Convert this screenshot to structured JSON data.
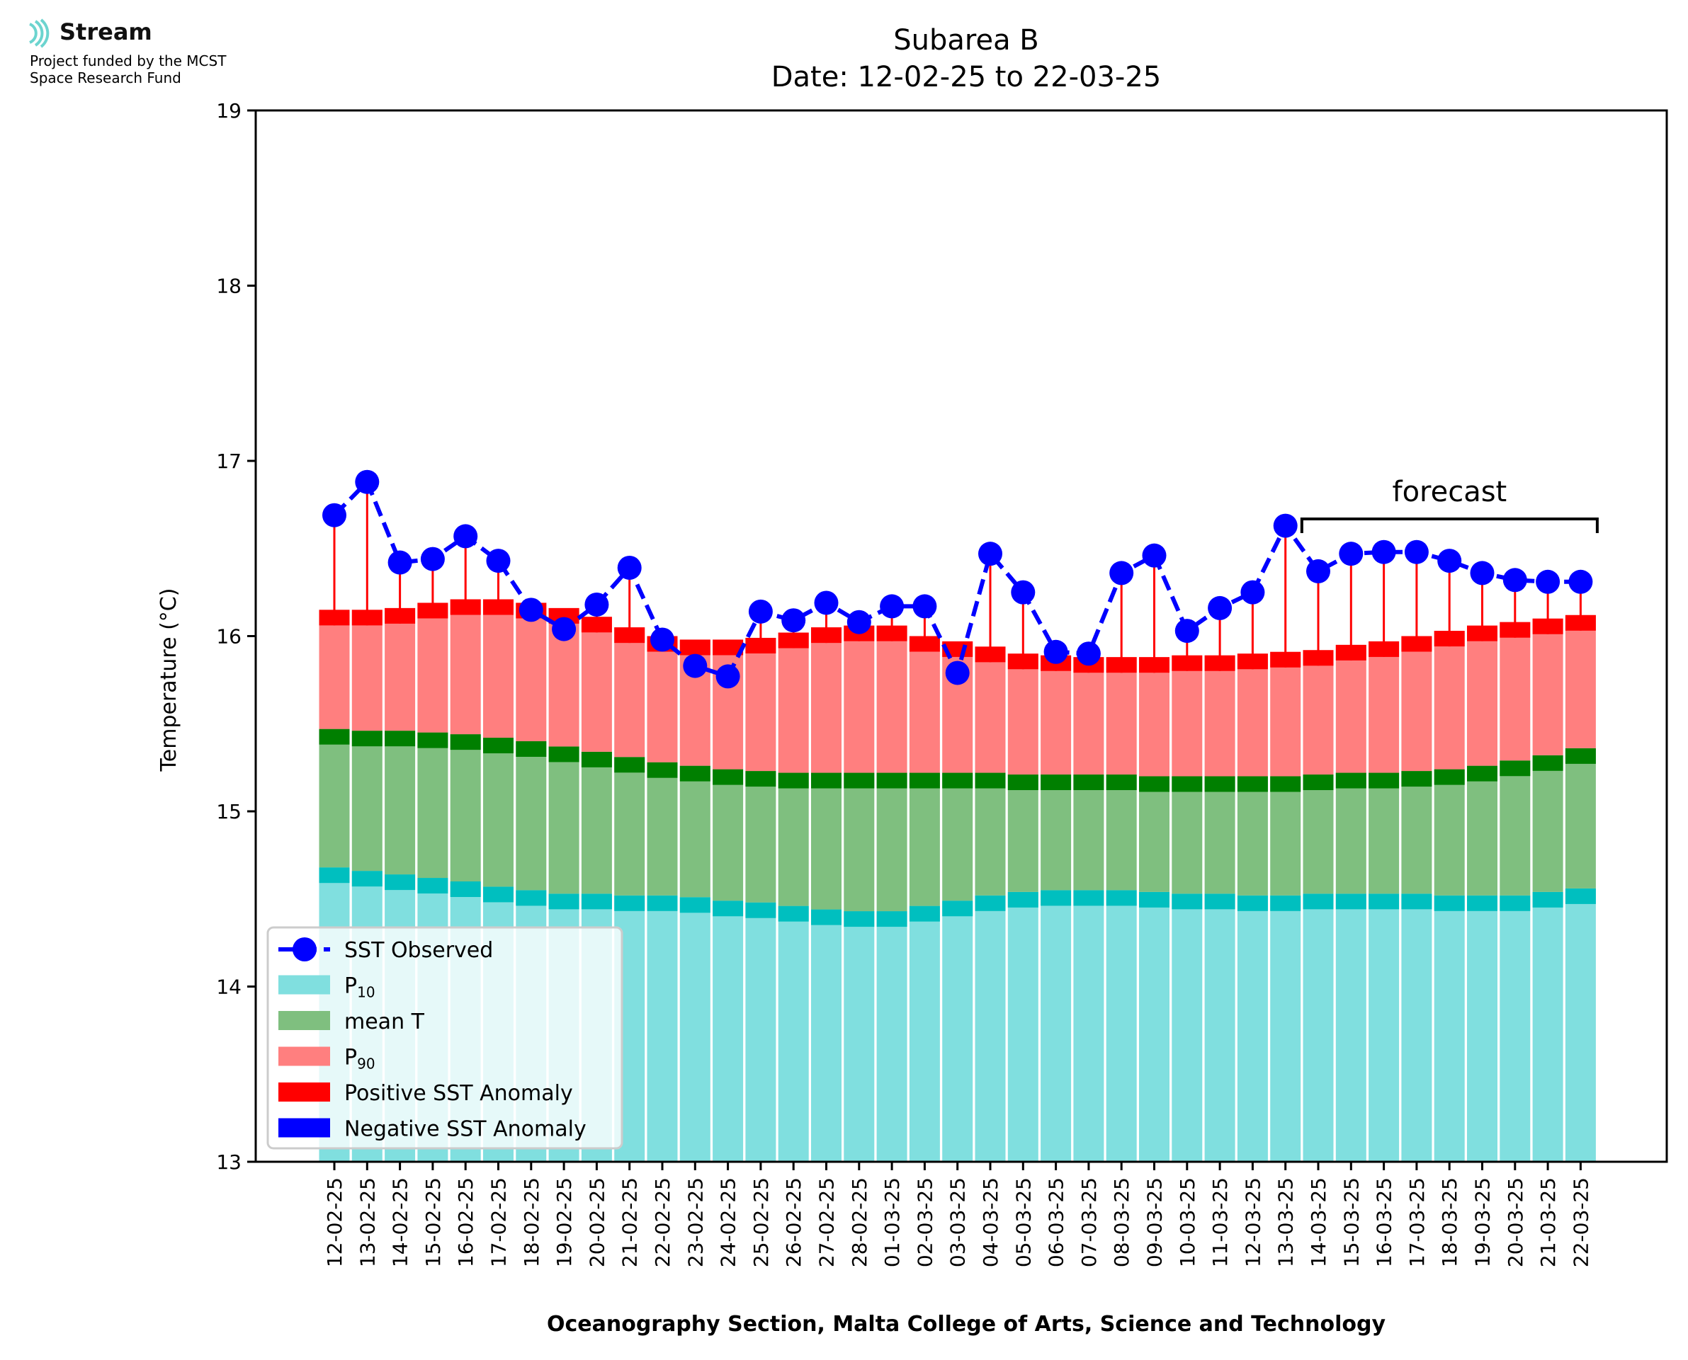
{
  "logo": {
    "icon": "stream-waves-icon",
    "brand": "Stream",
    "line1": "Project funded by the MCST",
    "line2": "Space Research Fund"
  },
  "chart_data": {
    "type": "bar",
    "title": "Subarea B",
    "subtitle": "Date: 12-02-25 to 22-03-25",
    "xlabel": "Oceanography Section, Malta College of Arts, Science and Technology",
    "ylabel": "Temperature (°C)",
    "ylim": [
      13,
      19
    ],
    "yticks": [
      13,
      14,
      15,
      16,
      17,
      18,
      19
    ],
    "annotation": "forecast",
    "forecast_start_index": 30,
    "legend_position": "lower-left",
    "categories": [
      "12-02-25",
      "13-02-25",
      "14-02-25",
      "15-02-25",
      "16-02-25",
      "17-02-25",
      "18-02-25",
      "19-02-25",
      "20-02-25",
      "21-02-25",
      "22-02-25",
      "23-02-25",
      "24-02-25",
      "25-02-25",
      "26-02-25",
      "27-02-25",
      "28-02-25",
      "01-03-25",
      "02-03-25",
      "03-03-25",
      "04-03-25",
      "05-03-25",
      "06-03-25",
      "07-03-25",
      "08-03-25",
      "09-03-25",
      "10-03-25",
      "11-03-25",
      "12-03-25",
      "13-03-25",
      "14-03-25",
      "15-03-25",
      "16-03-25",
      "17-03-25",
      "18-03-25",
      "19-03-25",
      "20-03-25",
      "21-03-25",
      "22-03-25"
    ],
    "p10": [
      14.68,
      14.66,
      14.64,
      14.62,
      14.6,
      14.57,
      14.55,
      14.53,
      14.53,
      14.52,
      14.52,
      14.51,
      14.49,
      14.48,
      14.46,
      14.44,
      14.43,
      14.43,
      14.46,
      14.49,
      14.52,
      14.54,
      14.55,
      14.55,
      14.55,
      14.54,
      14.53,
      14.53,
      14.52,
      14.52,
      14.53,
      14.53,
      14.53,
      14.53,
      14.52,
      14.52,
      14.52,
      14.54,
      14.56
    ],
    "mean_t": [
      15.47,
      15.46,
      15.46,
      15.45,
      15.44,
      15.42,
      15.4,
      15.37,
      15.34,
      15.31,
      15.28,
      15.26,
      15.24,
      15.23,
      15.22,
      15.22,
      15.22,
      15.22,
      15.22,
      15.22,
      15.22,
      15.21,
      15.21,
      15.21,
      15.21,
      15.2,
      15.2,
      15.2,
      15.2,
      15.2,
      15.21,
      15.22,
      15.22,
      15.23,
      15.24,
      15.26,
      15.29,
      15.32,
      15.36
    ],
    "p90": [
      16.15,
      16.15,
      16.16,
      16.19,
      16.21,
      16.21,
      16.19,
      16.16,
      16.11,
      16.05,
      16.0,
      15.98,
      15.98,
      15.99,
      16.02,
      16.05,
      16.06,
      16.06,
      16.0,
      15.97,
      15.94,
      15.9,
      15.89,
      15.88,
      15.88,
      15.88,
      15.89,
      15.89,
      15.9,
      15.91,
      15.92,
      15.95,
      15.97,
      16.0,
      16.03,
      16.06,
      16.08,
      16.1,
      16.12
    ],
    "series": [
      {
        "name": "SST Observed",
        "values": [
          16.69,
          16.88,
          16.42,
          16.44,
          16.57,
          16.43,
          16.15,
          16.04,
          16.18,
          16.39,
          15.98,
          15.83,
          15.77,
          16.14,
          16.09,
          16.19,
          16.08,
          16.17,
          16.17,
          15.79,
          16.47,
          16.25,
          15.91,
          15.9,
          16.36,
          16.46,
          16.03,
          16.16,
          16.25,
          16.63,
          16.37,
          16.47,
          16.48,
          16.48,
          16.43,
          16.36,
          16.32,
          16.31,
          16.31
        ]
      }
    ],
    "legend": [
      {
        "label": "SST Observed",
        "kind": "line-marker",
        "color": "#0000ff"
      },
      {
        "label": "P",
        "sub": "10",
        "kind": "patch",
        "color": "#80dfdf"
      },
      {
        "label": "mean T",
        "kind": "patch",
        "color": "#7fbf7f"
      },
      {
        "label": "P",
        "sub": "90",
        "kind": "patch",
        "color": "#ff7f7f"
      },
      {
        "label": "Positive SST Anomaly",
        "kind": "patch",
        "color": "#ff0000"
      },
      {
        "label": "Negative SST Anomaly",
        "kind": "patch",
        "color": "#0000ff"
      }
    ],
    "colors": {
      "p10": "#80dfdf",
      "p10_edge": "#00bfbf",
      "mean": "#7fbf7f",
      "mean_edge": "#007f00",
      "p90": "#ff7f7f",
      "p90_edge": "#ff0000",
      "anomaly_pos": "#ff0000",
      "anomaly_neg": "#0000ff",
      "observed": "#0000ff"
    }
  }
}
